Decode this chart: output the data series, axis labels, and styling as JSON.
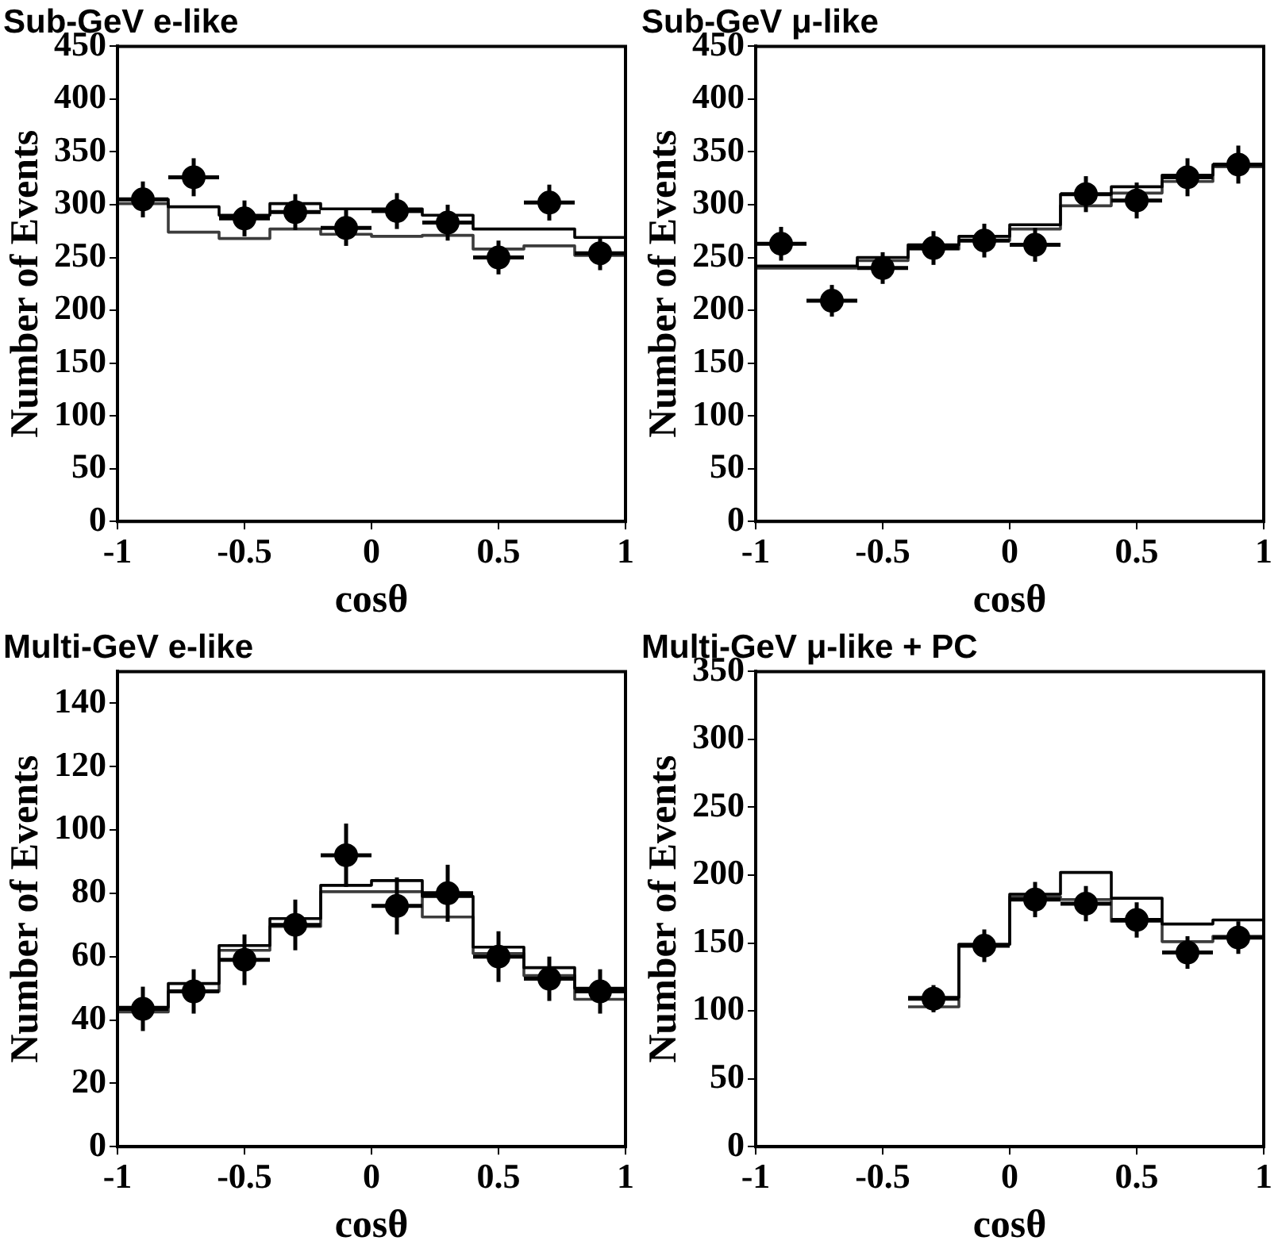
{
  "chart_data": [
    {
      "type": "histogram",
      "title": "Sub-GeV e-like",
      "xlabel": "cosθ",
      "ylabel": "Number of Events",
      "xlim": [
        -1,
        1
      ],
      "xticks": [
        -1,
        -0.5,
        0,
        0.5,
        1
      ],
      "ylim": [
        0,
        450
      ],
      "yticks": [
        0,
        50,
        100,
        150,
        200,
        250,
        300,
        350,
        400,
        450
      ],
      "marker": "circle",
      "series": [
        {
          "type": "scatter",
          "color": "#000000",
          "x": [
            -0.9,
            -0.7,
            -0.5,
            -0.3,
            -0.1,
            0.1,
            0.3,
            0.5,
            0.7,
            0.9
          ],
          "values": [
            305,
            326,
            287,
            293,
            278,
            294,
            283,
            250,
            302,
            254
          ],
          "errors": [
            17,
            18,
            17,
            17,
            17,
            17,
            17,
            16,
            17,
            16
          ],
          "xerrors": [
            0.1,
            0.1,
            0.1,
            0.1,
            0.1,
            0.1,
            0.1,
            0.1,
            0.1,
            0.1
          ]
        },
        {
          "color": "#000000",
          "bins": [
            -1,
            -0.8,
            -0.6,
            -0.4,
            -0.2,
            0,
            0.2,
            0.4,
            0.6,
            0.8,
            1
          ],
          "values": [
            305,
            298,
            290,
            301,
            296,
            296,
            290,
            277,
            277,
            269
          ]
        },
        {
          "color": "#3c3c3c",
          "bins": [
            -1,
            -0.8,
            -0.6,
            -0.4,
            -0.2,
            0,
            0.2,
            0.4,
            0.6,
            0.8,
            1
          ],
          "values": [
            301,
            274,
            268,
            277,
            272,
            270,
            271,
            258,
            261,
            252
          ]
        }
      ]
    },
    {
      "type": "histogram",
      "title": "Sub-GeV μ-like",
      "xlabel": "cosθ",
      "ylabel": "Number of Events",
      "xlim": [
        -1,
        1
      ],
      "xticks": [
        -1,
        -0.5,
        0,
        0.5,
        1
      ],
      "ylim": [
        0,
        450
      ],
      "yticks": [
        0,
        50,
        100,
        150,
        200,
        250,
        300,
        350,
        400,
        450
      ],
      "marker": "circle",
      "series": [
        {
          "type": "scatter",
          "color": "#000000",
          "x": [
            -0.9,
            -0.7,
            -0.5,
            -0.3,
            -0.1,
            0.1,
            0.3,
            0.5,
            0.7,
            0.9
          ],
          "values": [
            263,
            209,
            240,
            259,
            266,
            262,
            310,
            304,
            326,
            338
          ],
          "errors": [
            16,
            15,
            15,
            16,
            16,
            16,
            17,
            17,
            18,
            18
          ],
          "xerrors": [
            0.1,
            0.1,
            0.1,
            0.1,
            0.1,
            0.1,
            0.1,
            0.1,
            0.1,
            0.1
          ]
        },
        {
          "color": "#000000",
          "bins": [
            -1,
            -0.8,
            -0.6,
            -0.4,
            -0.2,
            0,
            0.2,
            0.4,
            0.6,
            0.8,
            1
          ],
          "values": [
            242,
            242,
            250,
            262,
            270,
            281,
            310,
            317,
            328,
            338
          ]
        },
        {
          "color": "#3c3c3c",
          "bins": [
            -1,
            -0.8,
            -0.6,
            -0.4,
            -0.2,
            0,
            0.2,
            0.4,
            0.6,
            0.8,
            1
          ],
          "values": [
            240,
            240,
            247,
            258,
            266,
            277,
            299,
            311,
            322,
            336
          ]
        }
      ]
    },
    {
      "type": "histogram",
      "title": "Multi-GeV e-like",
      "xlabel": "cosθ",
      "ylabel": "Number of Events",
      "xlim": [
        -1,
        1
      ],
      "xticks": [
        -1,
        -0.5,
        0,
        0.5,
        1
      ],
      "ylim": [
        0,
        150
      ],
      "yticks": [
        0,
        20,
        40,
        60,
        80,
        100,
        120,
        140
      ],
      "marker": "circle",
      "series": [
        {
          "type": "scatter",
          "color": "#000000",
          "x": [
            -0.9,
            -0.7,
            -0.5,
            -0.3,
            -0.1,
            0.1,
            0.3,
            0.5,
            0.7,
            0.9
          ],
          "values": [
            43.5,
            49,
            59,
            70,
            92,
            76,
            80,
            60,
            53,
            49
          ],
          "errors": [
            7,
            7,
            8,
            8,
            10,
            9,
            9,
            8,
            7,
            7
          ],
          "xerrors": [
            0.1,
            0.1,
            0.1,
            0.1,
            0.1,
            0.1,
            0.1,
            0.1,
            0.1,
            0.1
          ]
        },
        {
          "color": "#000000",
          "bins": [
            -1,
            -0.8,
            -0.6,
            -0.4,
            -0.2,
            0,
            0.2,
            0.4,
            0.6,
            0.8,
            1
          ],
          "values": [
            44,
            51.5,
            63.5,
            72,
            82.5,
            84,
            79,
            63,
            56.5,
            50
          ]
        },
        {
          "color": "#3c3c3c",
          "bins": [
            -1,
            -0.8,
            -0.6,
            -0.4,
            -0.2,
            0,
            0.2,
            0.4,
            0.6,
            0.8,
            1
          ],
          "values": [
            42.5,
            49,
            62,
            69.5,
            80.5,
            80.5,
            72.5,
            61,
            54,
            46.5
          ]
        }
      ]
    },
    {
      "type": "histogram",
      "title": "Multi-GeV μ-like + PC",
      "xlabel": "cosθ",
      "ylabel": "Number of Events",
      "xlim": [
        -1,
        1
      ],
      "xticks": [
        -1,
        -0.5,
        0,
        0.5,
        1
      ],
      "ylim": [
        0,
        350
      ],
      "yticks": [
        0,
        50,
        100,
        150,
        200,
        250,
        300,
        350
      ],
      "marker": "circle",
      "series": [
        {
          "type": "scatter",
          "color": "#000000",
          "x": [
            -0.3,
            -0.1,
            0.1,
            0.3,
            0.5,
            0.7,
            0.9
          ],
          "values": [
            109,
            148,
            182,
            179,
            167,
            143,
            154
          ],
          "errors": [
            10,
            12,
            13,
            13,
            13,
            12,
            12
          ],
          "xerrors": [
            0.1,
            0.1,
            0.1,
            0.1,
            0.1,
            0.1,
            0.1
          ]
        },
        {
          "color": "#000000",
          "bins": [
            -0.4,
            -0.2,
            0,
            0.2,
            0.4,
            0.6,
            0.8,
            1
          ],
          "values": [
            110,
            149,
            186,
            202,
            183,
            164,
            167
          ]
        },
        {
          "color": "#3c3c3c",
          "bins": [
            -0.4,
            -0.2,
            0,
            0.2,
            0.4,
            0.6,
            0.8,
            1
          ],
          "values": [
            103,
            149,
            184,
            182,
            166,
            151,
            155
          ]
        }
      ]
    }
  ]
}
